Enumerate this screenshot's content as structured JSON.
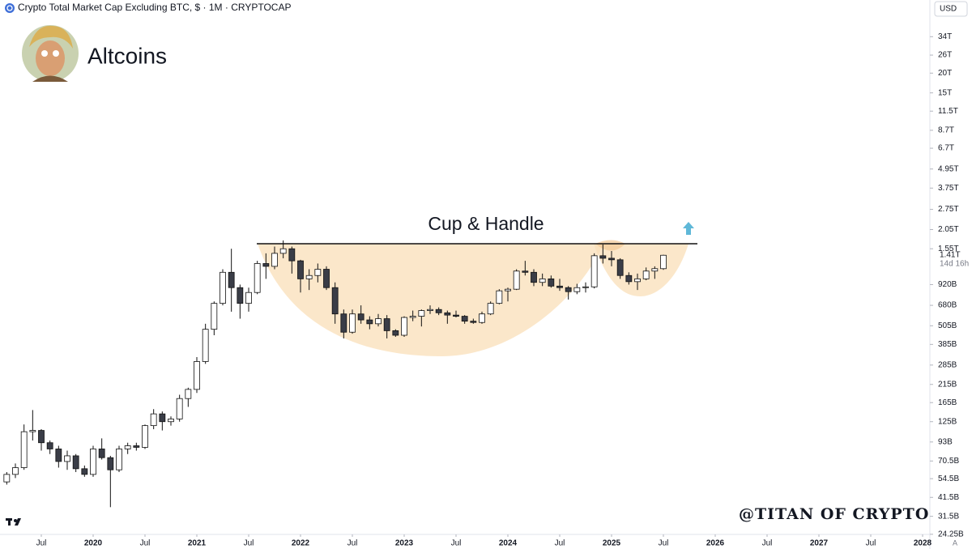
{
  "header": {
    "symbol": "Crypto Total Market Cap Excluding BTC, $ · 1M · CRYPTOCAP",
    "currency": "USD"
  },
  "author": {
    "name": "Altcoins",
    "watermark": "@TITAN OF CRYPTO"
  },
  "chart_data": {
    "type": "candlestick",
    "annotations": {
      "pattern": "Cup & Handle"
    },
    "price_label": "1.41T",
    "countdown": "14d 16h",
    "log_scale": true,
    "up_color": "#ffffff",
    "down_color": "#3a3d47",
    "outline_color": "#111111",
    "x": [
      "2019-03",
      "2019-04",
      "2019-05",
      "2019-06",
      "2019-07",
      "2019-08",
      "2019-09",
      "2019-10",
      "2019-11",
      "2019-12",
      "2020-01",
      "2020-02",
      "2020-03",
      "2020-04",
      "2020-05",
      "2020-06",
      "2020-07",
      "2020-08",
      "2020-09",
      "2020-10",
      "2020-11",
      "2020-12",
      "2021-01",
      "2021-02",
      "2021-03",
      "2021-04",
      "2021-05",
      "2021-06",
      "2021-07",
      "2021-08",
      "2021-09",
      "2021-10",
      "2021-11",
      "2021-12",
      "2022-01",
      "2022-02",
      "2022-03",
      "2022-04",
      "2022-05",
      "2022-06",
      "2022-07",
      "2022-08",
      "2022-09",
      "2022-10",
      "2022-11",
      "2022-12",
      "2023-01",
      "2023-02",
      "2023-03",
      "2023-04",
      "2023-05",
      "2023-06",
      "2023-07",
      "2023-08",
      "2023-09",
      "2023-10",
      "2023-11",
      "2023-12",
      "2024-01",
      "2024-02",
      "2024-03",
      "2024-04",
      "2024-05",
      "2024-06",
      "2024-07",
      "2024-08",
      "2024-09",
      "2024-10",
      "2024-11",
      "2024-12",
      "2025-01",
      "2025-02",
      "2025-03",
      "2025-04",
      "2025-05",
      "2025-06",
      "2025-07"
    ],
    "open": [
      52,
      58,
      64,
      108,
      110,
      92,
      84,
      70,
      76,
      63,
      58,
      84,
      74,
      62,
      84,
      88,
      86,
      118,
      140,
      125,
      130,
      175,
      200,
      300,
      480,
      700,
      1100,
      880,
      700,
      820,
      1250,
      1200,
      1450,
      1550,
      1300,
      1000,
      1050,
      1150,
      880,
      600,
      460,
      600,
      550,
      520,
      560,
      470,
      440,
      570,
      580,
      630,
      640,
      610,
      590,
      580,
      540,
      530,
      600,
      700,
      840,
      860,
      1120,
      1100,
      950,
      1000,
      900,
      880,
      830,
      880,
      890,
      1400,
      1350,
      1320,
      1050,
      960,
      1000,
      1120,
      1160
    ],
    "high": [
      60,
      68,
      120,
      148,
      112,
      95,
      88,
      82,
      78,
      66,
      88,
      98,
      76,
      88,
      92,
      92,
      120,
      150,
      145,
      135,
      185,
      205,
      320,
      520,
      720,
      1150,
      1550,
      920,
      880,
      1300,
      1450,
      1600,
      1750,
      1600,
      1320,
      1150,
      1250,
      1200,
      950,
      640,
      640,
      680,
      580,
      600,
      590,
      480,
      580,
      630,
      640,
      680,
      660,
      630,
      630,
      590,
      560,
      620,
      720,
      860,
      880,
      1150,
      1300,
      1150,
      1080,
      1050,
      1000,
      900,
      930,
      950,
      1450,
      1650,
      1500,
      1350,
      1100,
      1080,
      1180,
      1200,
      1420
    ],
    "low": [
      50,
      55,
      62,
      95,
      82,
      78,
      64,
      62,
      60,
      56,
      56,
      72,
      36,
      60,
      78,
      82,
      84,
      112,
      110,
      118,
      125,
      155,
      190,
      290,
      440,
      680,
      620,
      560,
      620,
      800,
      1000,
      1150,
      1350,
      1080,
      820,
      850,
      950,
      850,
      520,
      420,
      450,
      520,
      480,
      500,
      420,
      430,
      430,
      540,
      500,
      600,
      590,
      520,
      570,
      520,
      520,
      520,
      590,
      690,
      720,
      850,
      1050,
      900,
      900,
      880,
      840,
      740,
      800,
      820,
      870,
      1250,
      1200,
      1000,
      920,
      850,
      980,
      1000,
      1140
    ],
    "close": [
      58,
      64,
      108,
      110,
      92,
      84,
      70,
      76,
      63,
      58,
      84,
      74,
      62,
      84,
      88,
      86,
      118,
      140,
      125,
      130,
      175,
      200,
      300,
      480,
      700,
      1100,
      880,
      700,
      820,
      1250,
      1200,
      1450,
      1550,
      1300,
      1000,
      1050,
      1150,
      880,
      600,
      460,
      600,
      550,
      520,
      560,
      470,
      440,
      570,
      580,
      630,
      640,
      610,
      590,
      580,
      540,
      530,
      600,
      700,
      840,
      860,
      1120,
      1100,
      950,
      1000,
      900,
      880,
      830,
      880,
      890,
      1400,
      1350,
      1320,
      1050,
      960,
      1000,
      1120,
      1160,
      1410
    ],
    "ylim": [
      24.2,
      58000
    ],
    "yticks": [
      {
        "value": 24.25,
        "label": "24.25B"
      },
      {
        "value": 31.5,
        "label": "31.5B"
      },
      {
        "value": 41.5,
        "label": "41.5B"
      },
      {
        "value": 54.5,
        "label": "54.5B"
      },
      {
        "value": 70.5,
        "label": "70.5B"
      },
      {
        "value": 93,
        "label": "93B"
      },
      {
        "value": 125,
        "label": "125B"
      },
      {
        "value": 165,
        "label": "165B"
      },
      {
        "value": 215,
        "label": "215B"
      },
      {
        "value": 285,
        "label": "285B"
      },
      {
        "value": 385,
        "label": "385B"
      },
      {
        "value": 505,
        "label": "505B"
      },
      {
        "value": 680,
        "label": "680B"
      },
      {
        "value": 920,
        "label": "920B"
      },
      {
        "value": 1550,
        "label": "1.55T"
      },
      {
        "value": 2050,
        "label": "2.05T"
      },
      {
        "value": 2750,
        "label": "2.75T"
      },
      {
        "value": 3750,
        "label": "3.75T"
      },
      {
        "value": 4950,
        "label": "4.95T"
      },
      {
        "value": 6700,
        "label": "6.7T"
      },
      {
        "value": 8700,
        "label": "8.7T"
      },
      {
        "value": 11500,
        "label": "11.5T"
      },
      {
        "value": 15000,
        "label": "15T"
      },
      {
        "value": 20000,
        "label": "20T"
      },
      {
        "value": 26000,
        "label": "26T"
      },
      {
        "value": 34000,
        "label": "34T"
      }
    ],
    "xticks": [
      {
        "value": "2019-07",
        "label": "Jul"
      },
      {
        "value": "2020-01",
        "label": "2020"
      },
      {
        "value": "2020-07",
        "label": "Jul"
      },
      {
        "value": "2021-01",
        "label": "2021"
      },
      {
        "value": "2021-07",
        "label": "Jul"
      },
      {
        "value": "2022-01",
        "label": "2022"
      },
      {
        "value": "2022-07",
        "label": "Jul"
      },
      {
        "value": "2023-01",
        "label": "2023"
      },
      {
        "value": "2023-07",
        "label": "Jul"
      },
      {
        "value": "2024-01",
        "label": "2024"
      },
      {
        "value": "2024-07",
        "label": "Jul"
      },
      {
        "value": "2025-01",
        "label": "2025"
      },
      {
        "value": "2025-07",
        "label": "Jul"
      },
      {
        "value": "2026-01",
        "label": "2026"
      },
      {
        "value": "2026-07",
        "label": "Jul"
      },
      {
        "value": "2027-01",
        "label": "2027"
      },
      {
        "value": "2027-07",
        "label": "Jul"
      },
      {
        "value": "2028-01",
        "label": "2028"
      }
    ]
  }
}
